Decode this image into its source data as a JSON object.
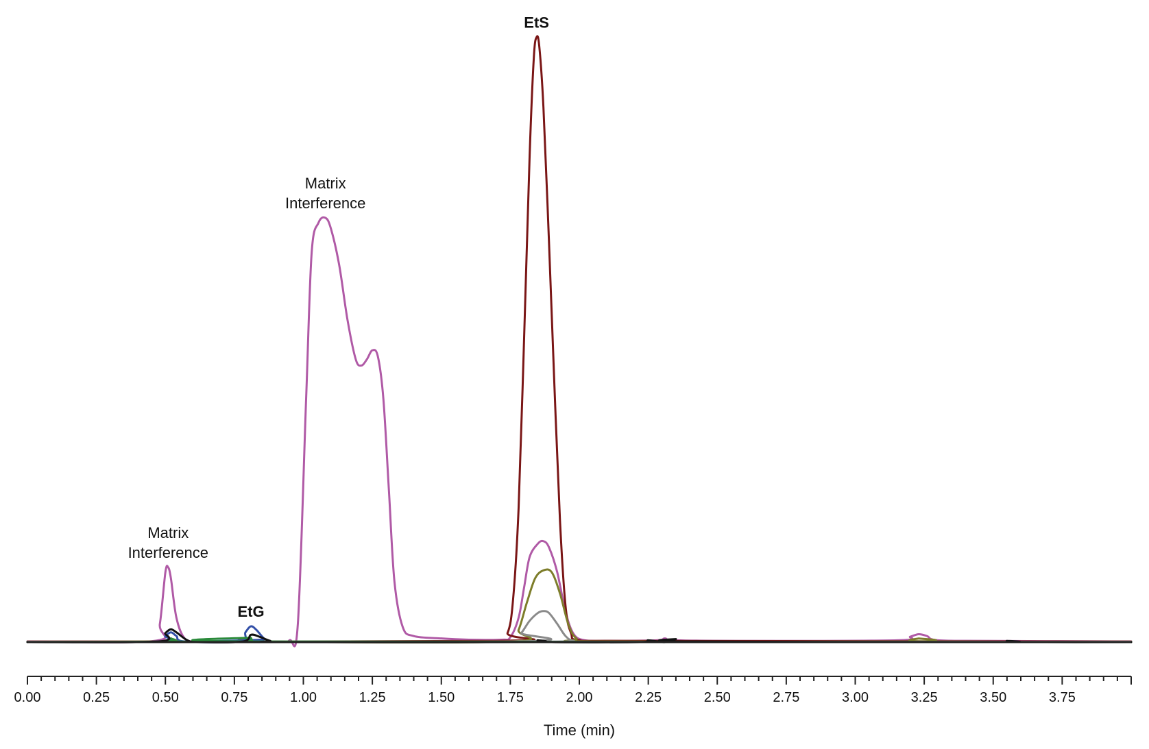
{
  "chart_data": {
    "type": "line",
    "title": "",
    "xlabel": "Time (min)",
    "ylabel": "",
    "xlim": [
      0.0,
      4.0
    ],
    "ylim": [
      0,
      100
    ],
    "x_ticks": [
      "0.00",
      "0.25",
      "0.50",
      "0.75",
      "1.00",
      "1.25",
      "1.50",
      "1.75",
      "2.00",
      "2.25",
      "2.50",
      "2.75",
      "3.00",
      "3.25",
      "3.50",
      "3.75"
    ],
    "x_tick_values": [
      0.0,
      0.25,
      0.5,
      0.75,
      1.0,
      1.25,
      1.5,
      1.75,
      2.0,
      2.25,
      2.5,
      2.75,
      3.0,
      3.25,
      3.5,
      3.75
    ],
    "grid": false,
    "legend": "none",
    "series": [
      {
        "color": "#b05aa6",
        "points": [
          [
            0.0,
            0.1
          ],
          [
            0.46,
            0.2
          ],
          [
            0.48,
            3.0
          ],
          [
            0.5,
            11.5
          ],
          [
            0.51,
            12.3
          ],
          [
            0.52,
            10.5
          ],
          [
            0.54,
            4.0
          ],
          [
            0.57,
            0.6
          ],
          [
            0.62,
            0.1
          ],
          [
            0.9,
            0.1
          ],
          [
            0.95,
            0.3
          ],
          [
            0.98,
            3.0
          ],
          [
            1.01,
            40.0
          ],
          [
            1.03,
            64.0
          ],
          [
            1.055,
            69.0
          ],
          [
            1.08,
            69.8
          ],
          [
            1.1,
            68.0
          ],
          [
            1.13,
            62.0
          ],
          [
            1.16,
            53.0
          ],
          [
            1.19,
            46.5
          ],
          [
            1.21,
            45.5
          ],
          [
            1.23,
            46.5
          ],
          [
            1.25,
            48.0
          ],
          [
            1.27,
            47.0
          ],
          [
            1.29,
            40.0
          ],
          [
            1.31,
            25.0
          ],
          [
            1.33,
            10.0
          ],
          [
            1.36,
            2.5
          ],
          [
            1.4,
            1.0
          ],
          [
            1.5,
            0.6
          ],
          [
            1.6,
            0.4
          ],
          [
            1.72,
            0.4
          ],
          [
            1.75,
            0.8
          ],
          [
            1.78,
            4.0
          ],
          [
            1.8,
            9.0
          ],
          [
            1.82,
            14.0
          ],
          [
            1.85,
            16.2
          ],
          [
            1.87,
            16.6
          ],
          [
            1.89,
            15.6
          ],
          [
            1.92,
            11.5
          ],
          [
            1.95,
            5.0
          ],
          [
            1.98,
            1.3
          ],
          [
            2.02,
            0.3
          ],
          [
            2.1,
            0.2
          ],
          [
            2.28,
            0.3
          ],
          [
            2.31,
            0.6
          ],
          [
            2.35,
            0.3
          ],
          [
            2.6,
            0.2
          ],
          [
            3.15,
            0.3
          ],
          [
            3.2,
            0.9
          ],
          [
            3.23,
            1.3
          ],
          [
            3.26,
            1.0
          ],
          [
            3.3,
            0.3
          ],
          [
            3.5,
            0.2
          ],
          [
            4.0,
            0.1
          ]
        ]
      },
      {
        "color": "#7a1616",
        "points": [
          [
            0.0,
            0.1
          ],
          [
            1.7,
            0.2
          ],
          [
            1.74,
            1.5
          ],
          [
            1.76,
            7.0
          ],
          [
            1.78,
            22.0
          ],
          [
            1.8,
            50.0
          ],
          [
            1.82,
            80.0
          ],
          [
            1.835,
            96.0
          ],
          [
            1.845,
            99.5
          ],
          [
            1.855,
            98.0
          ],
          [
            1.87,
            88.0
          ],
          [
            1.89,
            66.0
          ],
          [
            1.91,
            42.0
          ],
          [
            1.93,
            20.0
          ],
          [
            1.95,
            6.0
          ],
          [
            1.97,
            1.5
          ],
          [
            2.0,
            0.3
          ],
          [
            2.2,
            0.2
          ],
          [
            4.0,
            0.1
          ]
        ]
      },
      {
        "color": "#7d7d2a",
        "points": [
          [
            0.0,
            0.05
          ],
          [
            0.5,
            0.1
          ],
          [
            0.52,
            0.5
          ],
          [
            0.55,
            0.1
          ],
          [
            0.78,
            0.1
          ],
          [
            0.81,
            0.6
          ],
          [
            0.84,
            0.1
          ],
          [
            1.75,
            0.1
          ],
          [
            1.78,
            2.0
          ],
          [
            1.81,
            6.5
          ],
          [
            1.84,
            10.5
          ],
          [
            1.87,
            11.8
          ],
          [
            1.9,
            11.5
          ],
          [
            1.93,
            8.0
          ],
          [
            1.96,
            3.0
          ],
          [
            1.99,
            0.6
          ],
          [
            2.05,
            0.1
          ],
          [
            3.2,
            0.1
          ],
          [
            3.23,
            0.6
          ],
          [
            3.26,
            0.1
          ],
          [
            4.0,
            0.05
          ]
        ]
      },
      {
        "color": "#8a8a8a",
        "points": [
          [
            0.0,
            0.05
          ],
          [
            1.76,
            0.1
          ],
          [
            1.79,
            1.5
          ],
          [
            1.82,
            3.5
          ],
          [
            1.85,
            4.8
          ],
          [
            1.87,
            5.1
          ],
          [
            1.89,
            4.8
          ],
          [
            1.92,
            3.0
          ],
          [
            1.95,
            1.0
          ],
          [
            1.98,
            0.2
          ],
          [
            2.05,
            0.05
          ],
          [
            4.0,
            0.05
          ]
        ]
      },
      {
        "color": "#3350a8",
        "points": [
          [
            0.0,
            0.0
          ],
          [
            0.48,
            0.1
          ],
          [
            0.5,
            1.0
          ],
          [
            0.52,
            1.6
          ],
          [
            0.54,
            1.0
          ],
          [
            0.57,
            0.1
          ],
          [
            0.77,
            0.1
          ],
          [
            0.79,
            1.6
          ],
          [
            0.81,
            2.6
          ],
          [
            0.83,
            2.0
          ],
          [
            0.86,
            0.5
          ],
          [
            0.89,
            0.05
          ],
          [
            4.0,
            0.0
          ]
        ]
      },
      {
        "color": "#2a8a3a",
        "points": [
          [
            0.0,
            0.0
          ],
          [
            0.49,
            0.1
          ],
          [
            0.52,
            0.6
          ],
          [
            0.55,
            0.1
          ],
          [
            0.79,
            0.1
          ],
          [
            0.81,
            0.7
          ],
          [
            0.84,
            0.1
          ],
          [
            4.0,
            0.0
          ]
        ]
      },
      {
        "color": "#111111",
        "points": [
          [
            0.0,
            0.0
          ],
          [
            0.47,
            0.1
          ],
          [
            0.5,
            1.5
          ],
          [
            0.52,
            2.1
          ],
          [
            0.54,
            1.6
          ],
          [
            0.58,
            0.3
          ],
          [
            0.62,
            0.0
          ],
          [
            0.78,
            0.1
          ],
          [
            0.81,
            1.2
          ],
          [
            0.84,
            0.9
          ],
          [
            0.88,
            0.2
          ],
          [
            0.92,
            0.0
          ],
          [
            1.8,
            0.0
          ],
          [
            1.85,
            0.3
          ],
          [
            1.9,
            0.0
          ],
          [
            2.22,
            0.0
          ],
          [
            2.25,
            0.3
          ],
          [
            2.3,
            0.0
          ],
          [
            2.33,
            0.1
          ],
          [
            2.35,
            0.5
          ],
          [
            2.38,
            0.1
          ],
          [
            3.5,
            0.0
          ],
          [
            3.55,
            0.2
          ],
          [
            3.6,
            0.0
          ],
          [
            4.0,
            0.0
          ]
        ]
      }
    ],
    "annotations": [
      {
        "lines": [
          "Matrix",
          "Interference"
        ],
        "x": 0.51,
        "y": 12.3,
        "bold": false
      },
      {
        "lines": [
          "EtG"
        ],
        "x": 0.81,
        "y": 2.6,
        "bold": true
      },
      {
        "lines": [
          "Matrix",
          "Interference"
        ],
        "x": 1.08,
        "y": 69.8,
        "bold": false
      },
      {
        "lines": [
          "EtS"
        ],
        "x": 1.845,
        "y": 99.5,
        "bold": true
      }
    ]
  }
}
